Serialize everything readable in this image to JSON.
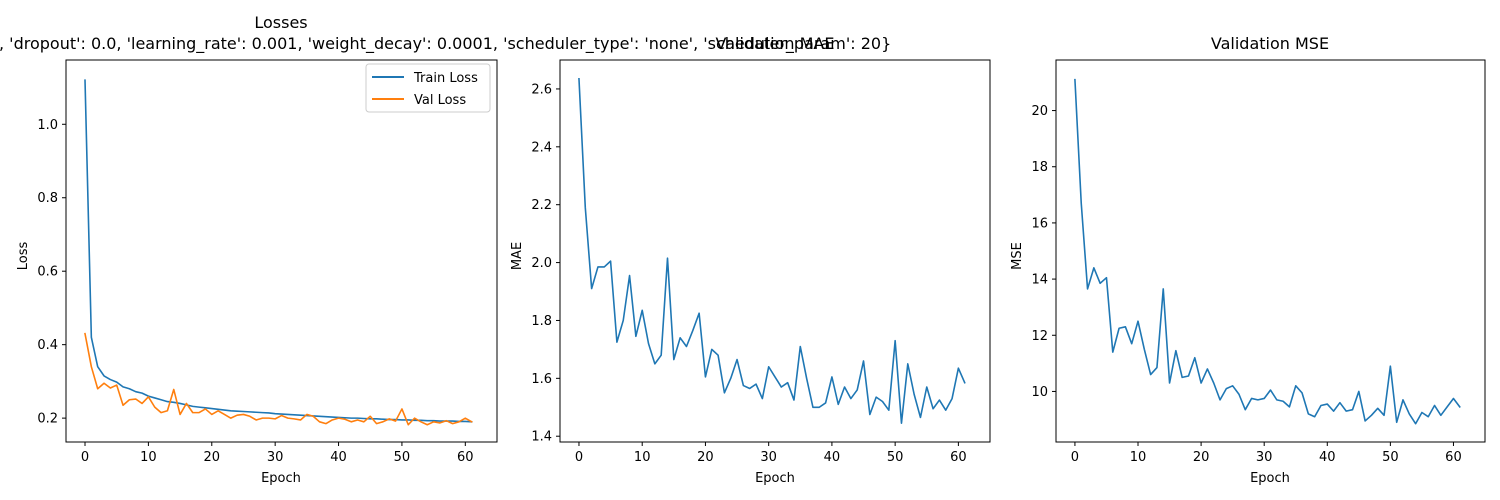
{
  "figure": {
    "suptitle": ", 'dropout': 0.0, 'learning_rate': 0.001, 'weight_decay': 0.0001, 'scheduler_type': 'none', 'scheduler_param': 20}"
  },
  "colors": {
    "train": "#1f77b4",
    "val": "#ff7f0e"
  },
  "chart_data": [
    {
      "type": "line",
      "title": "Losses",
      "xlabel": "Epoch",
      "ylabel": "Loss",
      "xlim": [
        -3,
        65
      ],
      "ylim": [
        0.135,
        1.175
      ],
      "xticks": [
        0,
        10,
        20,
        30,
        40,
        50,
        60
      ],
      "yticks": [
        0.2,
        0.4,
        0.6,
        0.8,
        1.0
      ],
      "ytick_labels": [
        "0.2",
        "0.4",
        "0.6",
        "0.8",
        "1.0"
      ],
      "legend": "top-right",
      "series": [
        {
          "name": "Train Loss",
          "color": "#1f77b4",
          "values": [
            1.12,
            0.42,
            0.34,
            0.315,
            0.305,
            0.298,
            0.285,
            0.28,
            0.272,
            0.268,
            0.26,
            0.255,
            0.25,
            0.245,
            0.243,
            0.24,
            0.236,
            0.232,
            0.23,
            0.228,
            0.226,
            0.224,
            0.222,
            0.22,
            0.219,
            0.218,
            0.217,
            0.216,
            0.215,
            0.214,
            0.212,
            0.211,
            0.21,
            0.209,
            0.208,
            0.207,
            0.206,
            0.205,
            0.204,
            0.203,
            0.202,
            0.201,
            0.2,
            0.2,
            0.199,
            0.198,
            0.198,
            0.197,
            0.196,
            0.196,
            0.195,
            0.195,
            0.194,
            0.194,
            0.193,
            0.193,
            0.192,
            0.192,
            0.192,
            0.191,
            0.191,
            0.19
          ]
        },
        {
          "name": "Val Loss",
          "color": "#ff7f0e",
          "values": [
            0.43,
            0.34,
            0.28,
            0.295,
            0.282,
            0.29,
            0.235,
            0.25,
            0.252,
            0.24,
            0.258,
            0.23,
            0.215,
            0.22,
            0.278,
            0.21,
            0.24,
            0.215,
            0.215,
            0.225,
            0.21,
            0.22,
            0.21,
            0.2,
            0.208,
            0.21,
            0.205,
            0.195,
            0.2,
            0.2,
            0.198,
            0.207,
            0.2,
            0.198,
            0.195,
            0.21,
            0.205,
            0.19,
            0.185,
            0.195,
            0.2,
            0.197,
            0.19,
            0.195,
            0.19,
            0.205,
            0.185,
            0.19,
            0.198,
            0.192,
            0.225,
            0.182,
            0.2,
            0.19,
            0.182,
            0.19,
            0.187,
            0.193,
            0.185,
            0.19,
            0.2,
            0.19
          ]
        }
      ]
    },
    {
      "type": "line",
      "title": "Validation MAE",
      "xlabel": "Epoch",
      "ylabel": "MAE",
      "xlim": [
        -3,
        65
      ],
      "ylim": [
        1.38,
        2.7
      ],
      "xticks": [
        0,
        10,
        20,
        30,
        40,
        50,
        60
      ],
      "yticks": [
        1.4,
        1.6,
        1.8,
        2.0,
        2.2,
        2.4,
        2.6
      ],
      "ytick_labels": [
        "1.4",
        "1.6",
        "1.8",
        "2.0",
        "2.2",
        "2.4",
        "2.6"
      ],
      "series": [
        {
          "color": "#1f77b4",
          "values": [
            2.635,
            2.19,
            1.91,
            1.985,
            1.985,
            2.005,
            1.725,
            1.8,
            1.955,
            1.745,
            1.835,
            1.72,
            1.65,
            1.68,
            2.015,
            1.665,
            1.74,
            1.71,
            1.765,
            1.825,
            1.605,
            1.7,
            1.68,
            1.55,
            1.6,
            1.665,
            1.575,
            1.565,
            1.58,
            1.53,
            1.64,
            1.605,
            1.57,
            1.585,
            1.525,
            1.71,
            1.6,
            1.5,
            1.5,
            1.515,
            1.605,
            1.51,
            1.57,
            1.53,
            1.56,
            1.66,
            1.475,
            1.535,
            1.52,
            1.49,
            1.73,
            1.445,
            1.65,
            1.545,
            1.465,
            1.57,
            1.495,
            1.525,
            1.49,
            1.53,
            1.635,
            1.585
          ]
        }
      ]
    },
    {
      "type": "line",
      "title": "Validation MSE",
      "xlabel": "Epoch",
      "ylabel": "MSE",
      "xlim": [
        -3,
        65
      ],
      "ylim": [
        8.2,
        21.8
      ],
      "xticks": [
        0,
        10,
        20,
        30,
        40,
        50,
        60
      ],
      "yticks": [
        10,
        12,
        14,
        16,
        18,
        20
      ],
      "ytick_labels": [
        "10",
        "12",
        "14",
        "16",
        "18",
        "20"
      ],
      "series": [
        {
          "color": "#1f77b4",
          "values": [
            21.1,
            16.7,
            13.65,
            14.4,
            13.85,
            14.05,
            11.4,
            12.25,
            12.3,
            11.7,
            12.5,
            11.5,
            10.6,
            10.85,
            13.65,
            10.3,
            11.45,
            10.5,
            10.55,
            11.2,
            10.3,
            10.8,
            10.3,
            9.7,
            10.1,
            10.2,
            9.9,
            9.35,
            9.75,
            9.7,
            9.75,
            10.05,
            9.7,
            9.65,
            9.45,
            10.2,
            9.95,
            9.2,
            9.1,
            9.5,
            9.55,
            9.3,
            9.6,
            9.3,
            9.35,
            10.0,
            8.95,
            9.15,
            9.4,
            9.15,
            10.9,
            8.9,
            9.7,
            9.2,
            8.85,
            9.25,
            9.1,
            9.5,
            9.15,
            9.45,
            9.75,
            9.45
          ]
        }
      ]
    }
  ]
}
